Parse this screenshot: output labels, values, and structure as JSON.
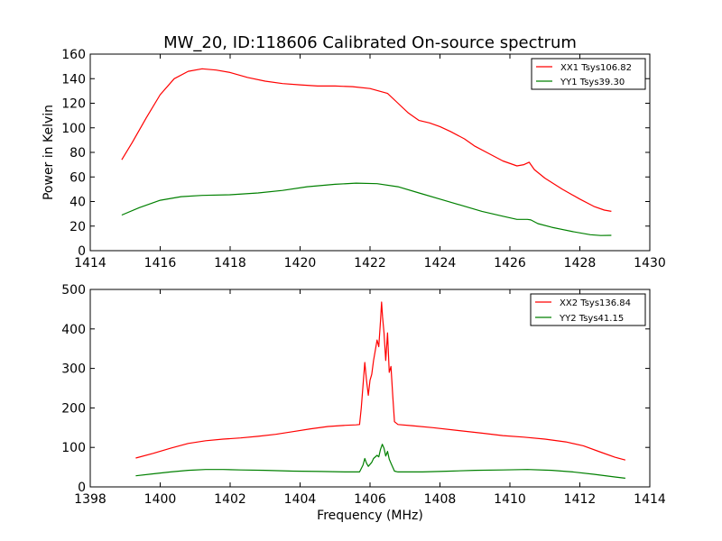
{
  "colors": {
    "xx": "#ff0000",
    "yy": "#008000"
  },
  "chart_data": [
    {
      "type": "line",
      "title": "MW_20, ID:118606 Calibrated On-source spectrum",
      "xlabel": "",
      "ylabel": "Power in Kelvin",
      "xlim": [
        1414,
        1430
      ],
      "ylim": [
        0,
        160
      ],
      "xticks": [
        "1414",
        "1416",
        "1418",
        "1420",
        "1422",
        "1424",
        "1426",
        "1428",
        "1430"
      ],
      "yticks": [
        "0",
        "20",
        "40",
        "60",
        "80",
        "100",
        "120",
        "140",
        "160"
      ],
      "legend_position": "top-right",
      "grid": false,
      "series": [
        {
          "name": "XX1 Tsys106.82",
          "color": "#ff0000",
          "points": [
            [
              1414.9,
              74
            ],
            [
              1415.2,
              88
            ],
            [
              1415.6,
              108
            ],
            [
              1416.0,
              127
            ],
            [
              1416.4,
              140
            ],
            [
              1416.8,
              146
            ],
            [
              1417.2,
              148
            ],
            [
              1417.6,
              147
            ],
            [
              1418.0,
              145
            ],
            [
              1418.5,
              141
            ],
            [
              1419.0,
              138
            ],
            [
              1419.5,
              136
            ],
            [
              1420.0,
              135
            ],
            [
              1420.5,
              134
            ],
            [
              1421.0,
              134
            ],
            [
              1421.5,
              133.5
            ],
            [
              1422.0,
              132
            ],
            [
              1422.5,
              128
            ],
            [
              1422.8,
              120
            ],
            [
              1423.1,
              112
            ],
            [
              1423.4,
              106
            ],
            [
              1423.7,
              104
            ],
            [
              1424.0,
              101
            ],
            [
              1424.3,
              97
            ],
            [
              1424.7,
              91
            ],
            [
              1425.0,
              85
            ],
            [
              1425.4,
              79
            ],
            [
              1425.8,
              73
            ],
            [
              1426.2,
              69
            ],
            [
              1426.4,
              70
            ],
            [
              1426.55,
              72
            ],
            [
              1426.7,
              66
            ],
            [
              1427.0,
              59
            ],
            [
              1427.5,
              50
            ],
            [
              1428.0,
              42
            ],
            [
              1428.4,
              36
            ],
            [
              1428.7,
              33
            ],
            [
              1428.9,
              32
            ]
          ]
        },
        {
          "name": "YY1 Tsys39.30",
          "color": "#008000",
          "points": [
            [
              1414.9,
              29
            ],
            [
              1415.4,
              35
            ],
            [
              1416.0,
              41
            ],
            [
              1416.6,
              44
            ],
            [
              1417.2,
              45
            ],
            [
              1418.0,
              45.5
            ],
            [
              1418.8,
              47
            ],
            [
              1419.5,
              49
            ],
            [
              1420.2,
              52
            ],
            [
              1421.0,
              54
            ],
            [
              1421.6,
              55
            ],
            [
              1422.2,
              54.5
            ],
            [
              1422.8,
              52
            ],
            [
              1423.4,
              47
            ],
            [
              1424.0,
              42
            ],
            [
              1424.6,
              37
            ],
            [
              1425.2,
              32
            ],
            [
              1425.8,
              28
            ],
            [
              1426.2,
              25.5
            ],
            [
              1426.5,
              25.5
            ],
            [
              1426.6,
              25
            ],
            [
              1426.8,
              22
            ],
            [
              1427.2,
              19
            ],
            [
              1427.8,
              15.5
            ],
            [
              1428.3,
              13
            ],
            [
              1428.6,
              12.3
            ],
            [
              1428.9,
              12.5
            ]
          ]
        }
      ]
    },
    {
      "type": "line",
      "title": "",
      "xlabel": "Frequency (MHz)",
      "ylabel": "",
      "xlim": [
        1398,
        1414
      ],
      "ylim": [
        0,
        500
      ],
      "xticks": [
        "1398",
        "1400",
        "1402",
        "1404",
        "1406",
        "1408",
        "1410",
        "1412",
        "1414"
      ],
      "yticks": [
        "0",
        "100",
        "200",
        "300",
        "400",
        "500"
      ],
      "legend_position": "top-right",
      "grid": false,
      "series": [
        {
          "name": "XX2 Tsys136.84",
          "color": "#ff0000",
          "points": [
            [
              1399.3,
              73
            ],
            [
              1399.8,
              85
            ],
            [
              1400.3,
              98
            ],
            [
              1400.8,
              110
            ],
            [
              1401.3,
              117
            ],
            [
              1401.8,
              121
            ],
            [
              1402.3,
              124
            ],
            [
              1402.8,
              128
            ],
            [
              1403.3,
              133
            ],
            [
              1403.8,
              140
            ],
            [
              1404.3,
              147
            ],
            [
              1404.8,
              153
            ],
            [
              1405.3,
              156
            ],
            [
              1405.6,
              157
            ],
            [
              1405.7,
              158
            ],
            [
              1405.75,
              200
            ],
            [
              1405.85,
              315
            ],
            [
              1405.9,
              270
            ],
            [
              1405.95,
              232
            ],
            [
              1406.0,
              270
            ],
            [
              1406.05,
              285
            ],
            [
              1406.1,
              320
            ],
            [
              1406.15,
              345
            ],
            [
              1406.2,
              372
            ],
            [
              1406.25,
              355
            ],
            [
              1406.3,
              420
            ],
            [
              1406.33,
              468
            ],
            [
              1406.36,
              430
            ],
            [
              1406.4,
              390
            ],
            [
              1406.45,
              320
            ],
            [
              1406.5,
              390
            ],
            [
              1406.55,
              290
            ],
            [
              1406.6,
              305
            ],
            [
              1406.65,
              230
            ],
            [
              1406.7,
              165
            ],
            [
              1406.8,
              158
            ],
            [
              1407.2,
              155
            ],
            [
              1407.8,
              150
            ],
            [
              1408.5,
              143
            ],
            [
              1409.2,
              136
            ],
            [
              1409.8,
              130
            ],
            [
              1410.4,
              126
            ],
            [
              1411.0,
              121
            ],
            [
              1411.6,
              114
            ],
            [
              1412.1,
              104
            ],
            [
              1412.6,
              88
            ],
            [
              1413.0,
              75
            ],
            [
              1413.3,
              68
            ]
          ]
        },
        {
          "name": "YY2 Tsys41.15",
          "color": "#008000",
          "points": [
            [
              1399.3,
              28
            ],
            [
              1399.8,
              33
            ],
            [
              1400.3,
              38
            ],
            [
              1400.8,
              42
            ],
            [
              1401.3,
              44
            ],
            [
              1401.8,
              44
            ],
            [
              1402.3,
              43
            ],
            [
              1403.0,
              42
            ],
            [
              1403.8,
              40
            ],
            [
              1404.6,
              39
            ],
            [
              1405.3,
              38
            ],
            [
              1405.7,
              38
            ],
            [
              1405.8,
              55
            ],
            [
              1405.85,
              72
            ],
            [
              1405.9,
              60
            ],
            [
              1405.95,
              52
            ],
            [
              1406.05,
              62
            ],
            [
              1406.1,
              72
            ],
            [
              1406.2,
              80
            ],
            [
              1406.25,
              76
            ],
            [
              1406.3,
              95
            ],
            [
              1406.35,
              108
            ],
            [
              1406.4,
              98
            ],
            [
              1406.45,
              78
            ],
            [
              1406.5,
              90
            ],
            [
              1406.55,
              70
            ],
            [
              1406.6,
              60
            ],
            [
              1406.7,
              40
            ],
            [
              1406.8,
              38
            ],
            [
              1407.5,
              38
            ],
            [
              1408.3,
              40
            ],
            [
              1409.0,
              42
            ],
            [
              1409.8,
              43
            ],
            [
              1410.5,
              44
            ],
            [
              1411.2,
              42
            ],
            [
              1411.8,
              38
            ],
            [
              1412.4,
              32
            ],
            [
              1413.0,
              25
            ],
            [
              1413.3,
              22
            ]
          ]
        }
      ]
    }
  ]
}
